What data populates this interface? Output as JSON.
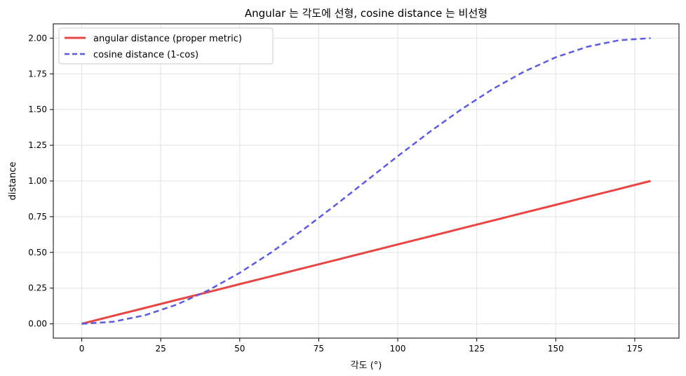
{
  "chart_data": {
    "type": "line",
    "title": "Angular 는 각도에 선형, cosine distance 는 비선형",
    "xlabel": "각도 (°)",
    "ylabel": "distance",
    "xlim": [
      -9,
      189
    ],
    "ylim": [
      -0.1,
      2.1
    ],
    "xticks": [
      0,
      25,
      50,
      75,
      100,
      125,
      150,
      175
    ],
    "yticks": [
      "0.00",
      "0.25",
      "0.50",
      "0.75",
      "1.00",
      "1.25",
      "1.50",
      "1.75",
      "2.00"
    ],
    "grid": true,
    "legend_position": "top-left",
    "x": [
      0,
      10,
      20,
      30,
      40,
      50,
      60,
      70,
      80,
      90,
      100,
      110,
      120,
      130,
      140,
      150,
      160,
      170,
      180
    ],
    "series": [
      {
        "name": "angular distance (proper metric)",
        "color": "#e84545",
        "style": "solid",
        "values": [
          0.0,
          0.056,
          0.111,
          0.167,
          0.222,
          0.278,
          0.333,
          0.389,
          0.444,
          0.5,
          0.556,
          0.611,
          0.667,
          0.722,
          0.778,
          0.833,
          0.889,
          0.944,
          1.0
        ]
      },
      {
        "name": "cosine distance (1-cos)",
        "color": "#5b5be6",
        "style": "dashed",
        "values": [
          0.0,
          0.015,
          0.06,
          0.134,
          0.234,
          0.357,
          0.5,
          0.658,
          0.826,
          1.0,
          1.174,
          1.342,
          1.5,
          1.643,
          1.766,
          1.866,
          1.94,
          1.985,
          2.0
        ]
      }
    ]
  }
}
